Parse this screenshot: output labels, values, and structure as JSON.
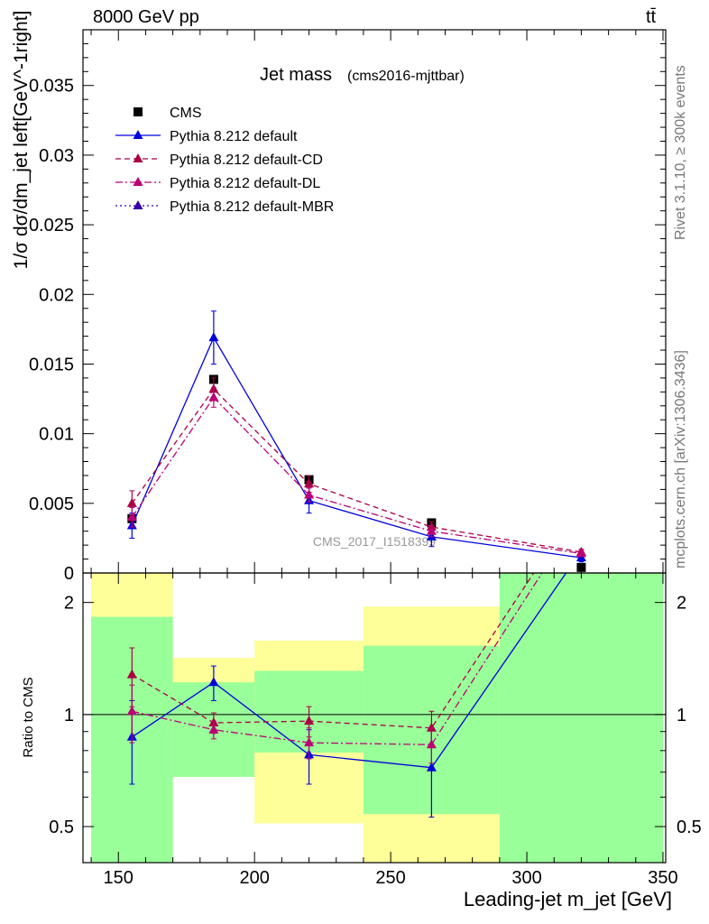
{
  "header": {
    "left": "8000 GeV pp",
    "right": "tt̄"
  },
  "side_text": {
    "top": "Rivet 3.1.10, ≥ 300k events",
    "bottom": "mcplots.cern.ch [arXiv:1306.3436]"
  },
  "chart_data": [
    {
      "type": "scatter",
      "title": "Jet mass",
      "subtitle": "(cms2016-mjttbar)",
      "ylabel": "1/σ dσ/dm_jet left[GeV^-1right]",
      "xlim": [
        137,
        351
      ],
      "ylim": [
        0,
        0.039
      ],
      "yticks": [
        "0",
        "0.005",
        "0.01",
        "0.015",
        "0.02",
        "0.025",
        "0.03",
        "0.035"
      ],
      "legend_position": "top-left",
      "watermark": "CMS_2017_I1518399",
      "x": [
        155,
        185,
        220,
        265,
        320
      ],
      "series": [
        {
          "name": "CMS",
          "color": "#000000",
          "marker": "square",
          "values": [
            0.0039,
            0.0139,
            0.0067,
            0.0036,
            0.0004
          ]
        },
        {
          "name": "Pythia 8.212 default",
          "color": "#0000dd",
          "style": "solid",
          "values": [
            0.0034,
            0.0169,
            0.0052,
            0.0026,
            0.0011
          ],
          "errors": [
            0.0009,
            0.0019,
            0.0009,
            0.0007,
            0.0003
          ]
        },
        {
          "name": "Pythia 8.212 default-CD",
          "color": "#aa0044",
          "style": "dashed",
          "values": [
            0.005,
            0.0132,
            0.0064,
            0.0033,
            0.0015
          ],
          "errors": [
            0.0009,
            0.0008,
            0.0006,
            0.0004,
            0.0002
          ]
        },
        {
          "name": "Pythia 8.212 default-DL",
          "color": "#bb0077",
          "style": "dashdot",
          "values": [
            0.004,
            0.0126,
            0.0056,
            0.003,
            0.0014
          ],
          "errors": [
            0.0007,
            0.0007,
            0.0005,
            0.0004,
            0.0002
          ]
        },
        {
          "name": "Pythia 8.212 default-MBR",
          "color": "#3300aa",
          "style": "dotted",
          "values": [],
          "errors": []
        }
      ]
    },
    {
      "type": "line",
      "ylabel": "Ratio to CMS",
      "xlabel": "Leading-jet m_jet [GeV]",
      "xticks": [
        150,
        200,
        250,
        300,
        350
      ],
      "yticks": [
        "0.5",
        "1",
        "2"
      ],
      "ylim": [
        0.4,
        2.4
      ],
      "log_scale": true,
      "reference_line": 1,
      "bands": [
        {
          "x": [
            140,
            170
          ],
          "green": [
            0.4,
            1.83
          ],
          "yellow": [
            0.4,
            2.4
          ]
        },
        {
          "x": [
            170,
            200
          ],
          "green": [
            0.68,
            1.22
          ],
          "yellow": [
            0.68,
            1.42
          ]
        },
        {
          "x": [
            200,
            240
          ],
          "green": [
            0.79,
            1.31
          ],
          "yellow": [
            0.51,
            1.58
          ]
        },
        {
          "x": [
            240,
            290
          ],
          "green": [
            0.54,
            1.53
          ],
          "yellow": [
            0.4,
            1.95
          ]
        },
        {
          "x": [
            290,
            350
          ],
          "green": [
            0.4,
            2.4
          ],
          "yellow": [
            0.4,
            2.4
          ]
        }
      ],
      "x": [
        155,
        185,
        220,
        265,
        320
      ],
      "series": [
        {
          "name": "Pythia 8.212 default",
          "color": "#0000dd",
          "style": "solid",
          "values": [
            0.87,
            1.22,
            0.78,
            0.72,
            2.75
          ],
          "errors": [
            0.22,
            0.13,
            0.13,
            0.19,
            0
          ]
        },
        {
          "name": "Pythia 8.212 default-CD",
          "color": "#aa0044",
          "style": "dashed",
          "values": [
            1.28,
            0.95,
            0.96,
            0.92,
            3.75
          ],
          "errors": [
            0.23,
            0.06,
            0.09,
            0.1,
            0
          ]
        },
        {
          "name": "Pythia 8.212 default-DL",
          "color": "#bb0077",
          "style": "dashdot",
          "values": [
            1.02,
            0.91,
            0.84,
            0.83,
            3.5
          ],
          "errors": [
            0.18,
            0.05,
            0.08,
            0.09,
            0
          ]
        }
      ]
    }
  ]
}
